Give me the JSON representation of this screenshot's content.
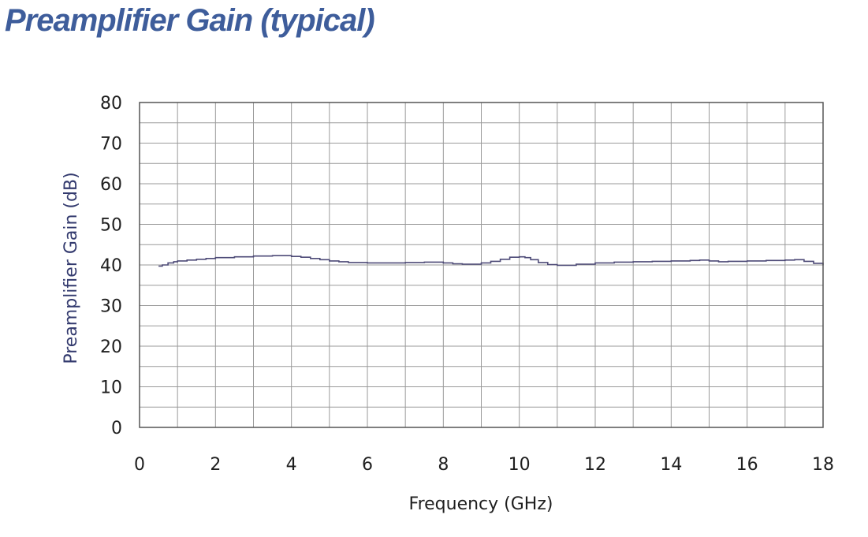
{
  "title": "Preamplifier Gain (typical)",
  "colors": {
    "title": "#3e5d9b",
    "ylabel": "#333a6e",
    "xlabel": "#1f1f1f",
    "series": "#4d4a77",
    "grid": "#9a9a9a",
    "frame": "#555555"
  },
  "chart_data": {
    "type": "line",
    "title": "Preamplifier Gain (typical)",
    "xlabel": "Frequency (GHz)",
    "ylabel": "Preamplifier Gain (dB)",
    "xlim": [
      0,
      18
    ],
    "ylim": [
      0,
      80
    ],
    "x_ticks": [
      0,
      2,
      4,
      6,
      8,
      10,
      12,
      14,
      16,
      18
    ],
    "y_ticks": [
      0,
      10,
      20,
      30,
      40,
      50,
      60,
      70,
      80
    ],
    "x_tick_labels": [
      "0",
      "2",
      "4",
      "6",
      "8",
      "10",
      "12",
      "14",
      "16",
      "18"
    ],
    "y_tick_labels": [
      "0",
      "10",
      "20",
      "30",
      "40",
      "50",
      "60",
      "70",
      "80"
    ],
    "x_minor_step": 1,
    "y_minor_step": 5,
    "grid": true,
    "legend": false,
    "series": [
      {
        "x": [
          0.5,
          0.6,
          0.75,
          0.9,
          1.0,
          1.25,
          1.5,
          1.75,
          2.0,
          2.5,
          3.0,
          3.5,
          3.8,
          4.0,
          4.25,
          4.5,
          4.75,
          5.0,
          5.25,
          5.5,
          6.0,
          6.5,
          7.0,
          7.5,
          8.0,
          8.25,
          8.5,
          8.75,
          9.0,
          9.25,
          9.5,
          9.75,
          10.0,
          10.15,
          10.3,
          10.5,
          10.75,
          11.0,
          11.25,
          11.5,
          12.0,
          12.5,
          13.0,
          13.5,
          14.0,
          14.5,
          14.75,
          15.0,
          15.25,
          15.5,
          16.0,
          16.5,
          17.0,
          17.25,
          17.5,
          17.75,
          18.0
        ],
        "y": [
          39.7,
          40.0,
          40.5,
          40.8,
          41.0,
          41.2,
          41.4,
          41.6,
          41.8,
          42.0,
          42.2,
          42.3,
          42.3,
          42.1,
          41.9,
          41.6,
          41.3,
          41.0,
          40.8,
          40.6,
          40.5,
          40.5,
          40.6,
          40.7,
          40.5,
          40.3,
          40.2,
          40.2,
          40.5,
          40.9,
          41.4,
          41.9,
          42.0,
          41.8,
          41.3,
          40.6,
          40.1,
          39.9,
          39.9,
          40.2,
          40.5,
          40.7,
          40.8,
          40.9,
          41.0,
          41.1,
          41.2,
          41.0,
          40.8,
          40.9,
          41.0,
          41.1,
          41.2,
          41.3,
          40.9,
          40.4,
          39.9
        ]
      }
    ]
  }
}
